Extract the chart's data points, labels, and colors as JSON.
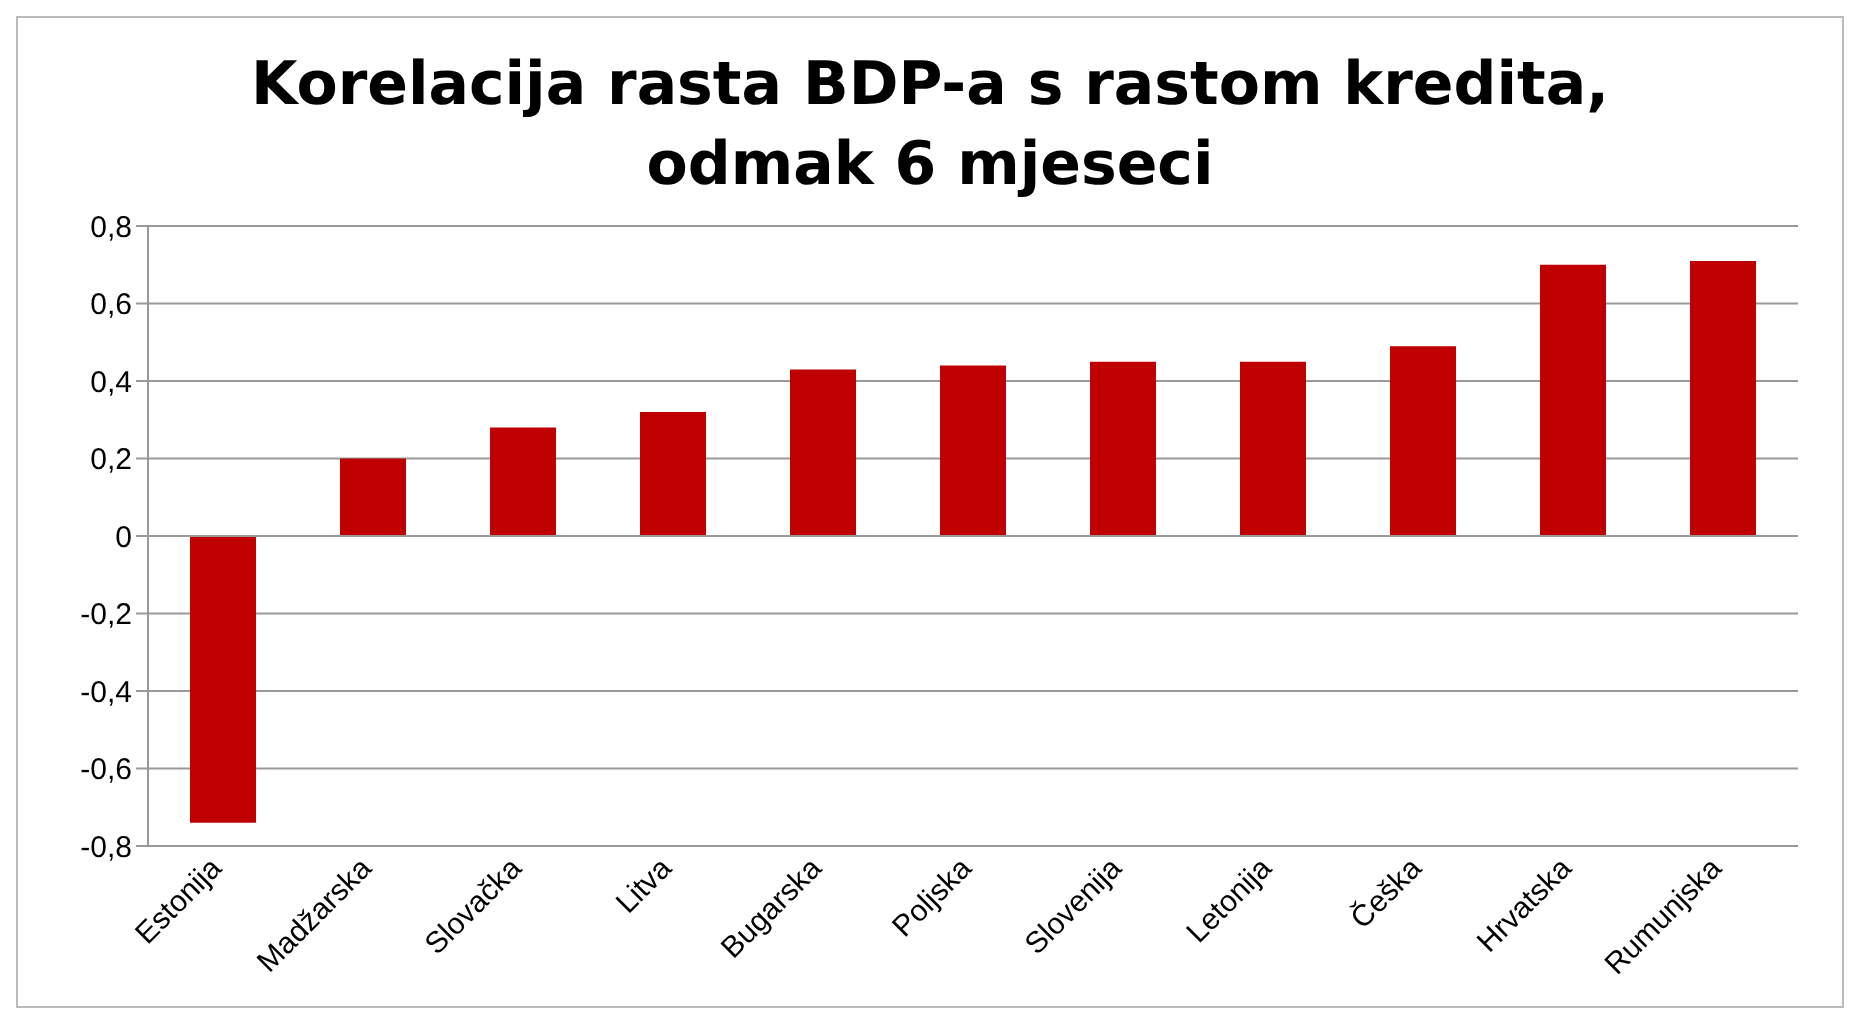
{
  "chart_data": {
    "type": "bar",
    "title": "Korelacija rasta BDP-a s rastom kredita,\nodmak 6 mjeseci",
    "categories": [
      "Estonija",
      "Madžarska",
      "Slovačka",
      "Litva",
      "Bugarska",
      "Poljska",
      "Slovenija",
      "Letonija",
      "Češka",
      "Hrvatska",
      "Rumunjska"
    ],
    "values": [
      -0.74,
      0.2,
      0.28,
      0.32,
      0.43,
      0.44,
      0.45,
      0.45,
      0.49,
      0.7,
      0.71
    ],
    "color": "#c00000",
    "ylim": [
      -0.8,
      0.8
    ],
    "yticks": [
      {
        "value": -0.8,
        "label": "-0,8"
      },
      {
        "value": -0.6,
        "label": "-0,6"
      },
      {
        "value": -0.4,
        "label": "-0,4"
      },
      {
        "value": -0.2,
        "label": "-0,2"
      },
      {
        "value": 0,
        "label": "0"
      },
      {
        "value": 0.2,
        "label": "0,2"
      },
      {
        "value": 0.4,
        "label": "0,4"
      },
      {
        "value": 0.6,
        "label": "0,6"
      },
      {
        "value": 0.8,
        "label": "0,8"
      }
    ],
    "grid": "y",
    "legend": false
  }
}
